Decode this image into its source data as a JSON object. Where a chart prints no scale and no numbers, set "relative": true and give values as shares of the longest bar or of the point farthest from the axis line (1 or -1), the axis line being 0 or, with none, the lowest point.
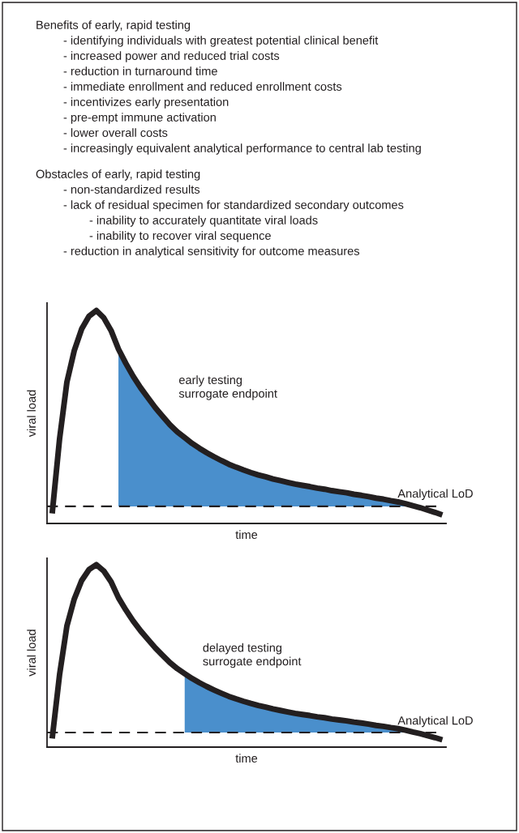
{
  "chart_data": [
    {
      "type": "other",
      "title": "Benefits of early, rapid testing",
      "annotations": [
        "- identifying individuals with greatest potential clinical benefit",
        "- increased power and reduced trial costs",
        "- reduction in turnaround time",
        "- immediate enrollment and reduced enrollment costs",
        "- incentivizes early presentation",
        "- pre-empt immune activation",
        "- lower overall costs",
        "- increasingly equivalent analytical performance to central lab testing"
      ]
    },
    {
      "type": "other",
      "title": "Obstacles of early, rapid testing",
      "annotations": [
        "- non-standardized results",
        "- lack of residual specimen for standardized secondary outcomes",
        "    - inability to accurately quantitate viral loads",
        "    - inability to recover viral sequence",
        "- reduction in analytical sensitivity for outcome measures"
      ]
    },
    {
      "type": "line",
      "relative": true,
      "xlabel": "time",
      "ylabel": "viral load",
      "annotations": [
        "early testing\nsurrogate endpoint"
      ],
      "categories": [
        null,
        null,
        null,
        null,
        null,
        null,
        null,
        null,
        null,
        null,
        null,
        null,
        null,
        null,
        null,
        null,
        null,
        null,
        null,
        null,
        null,
        null,
        null,
        null,
        null,
        null,
        null,
        null,
        null,
        null,
        null,
        null,
        null,
        null,
        null,
        null,
        null,
        null,
        null,
        null,
        null,
        null,
        null,
        null,
        null,
        null,
        null,
        null,
        null,
        null,
        null,
        null,
        null,
        null
      ],
      "ref_lines": [
        {
          "axis": "y",
          "value": 0.08,
          "label": "Analytical LoD",
          "color": "#231f20",
          "line_style": "dashed"
        }
      ],
      "series": [
        {
          "type": "line",
          "color": "#231f20",
          "values": [
            0.047,
            0.396,
            0.664,
            0.812,
            0.913,
            0.973,
            1,
            0.966,
            0.906,
            0.819,
            0.752,
            0.691,
            0.638,
            0.591,
            0.544,
            0.503,
            0.463,
            0.43,
            0.403,
            0.376,
            0.353,
            0.332,
            0.313,
            0.295,
            0.278,
            0.264,
            0.251,
            0.239,
            0.228,
            0.219,
            0.209,
            0.201,
            0.193,
            0.185,
            0.179,
            0.173,
            0.166,
            0.161,
            0.154,
            0.149,
            0.144,
            0.137,
            0.132,
            0.126,
            0.119,
            0.114,
            0.107,
            0.101,
            0.093,
            0.083,
            0.074,
            0.063,
            0.052,
            0.04
          ]
        },
        {
          "type": "area",
          "color": "#4a8fcc",
          "values": [
            null,
            null,
            null,
            null,
            null,
            null,
            null,
            null,
            null,
            0.819,
            0.752,
            0.691,
            0.638,
            0.591,
            0.544,
            0.503,
            0.463,
            0.43,
            0.403,
            0.376,
            0.353,
            0.332,
            0.313,
            0.295,
            0.278,
            0.264,
            0.251,
            0.239,
            0.228,
            0.219,
            0.209,
            0.201,
            0.193,
            0.185,
            0.179,
            0.173,
            0.166,
            0.161,
            0.154,
            0.149,
            0.144,
            0.137,
            0.132,
            0.126,
            0.119,
            0.114,
            0.107,
            0.101,
            0.093,
            0.083,
            null,
            null,
            null,
            null
          ]
        }
      ]
    },
    {
      "type": "line",
      "relative": true,
      "xlabel": "time",
      "ylabel": "viral load",
      "annotations": [
        "delayed testing\nsurrogate endpoint"
      ],
      "categories": [
        null,
        null,
        null,
        null,
        null,
        null,
        null,
        null,
        null,
        null,
        null,
        null,
        null,
        null,
        null,
        null,
        null,
        null,
        null,
        null,
        null,
        null,
        null,
        null,
        null,
        null,
        null,
        null,
        null,
        null,
        null,
        null,
        null,
        null,
        null,
        null,
        null,
        null,
        null,
        null,
        null,
        null,
        null,
        null,
        null,
        null,
        null,
        null,
        null,
        null,
        null,
        null,
        null,
        null
      ],
      "ref_lines": [
        {
          "axis": "y",
          "value": 0.08,
          "label": "Analytical LoD",
          "color": "#231f20",
          "line_style": "dashed"
        }
      ],
      "series": [
        {
          "type": "line",
          "color": "#231f20",
          "values": [
            0.047,
            0.396,
            0.664,
            0.812,
            0.913,
            0.973,
            1,
            0.966,
            0.906,
            0.819,
            0.752,
            0.691,
            0.638,
            0.591,
            0.544,
            0.503,
            0.463,
            0.43,
            0.403,
            0.376,
            0.353,
            0.332,
            0.313,
            0.295,
            0.278,
            0.264,
            0.251,
            0.239,
            0.228,
            0.219,
            0.209,
            0.201,
            0.193,
            0.185,
            0.179,
            0.173,
            0.166,
            0.161,
            0.154,
            0.149,
            0.144,
            0.137,
            0.132,
            0.126,
            0.119,
            0.114,
            0.107,
            0.101,
            0.093,
            0.083,
            0.074,
            0.063,
            0.052,
            0.04
          ]
        },
        {
          "type": "area",
          "color": "#4a8fcc",
          "values": [
            null,
            null,
            null,
            null,
            null,
            null,
            null,
            null,
            null,
            null,
            null,
            null,
            null,
            null,
            null,
            null,
            null,
            null,
            0.403,
            0.376,
            0.353,
            0.332,
            0.313,
            0.295,
            0.278,
            0.264,
            0.251,
            0.239,
            0.228,
            0.219,
            0.209,
            0.201,
            0.193,
            0.185,
            0.179,
            0.173,
            0.166,
            0.161,
            0.154,
            0.149,
            0.144,
            0.137,
            0.132,
            0.126,
            0.119,
            0.114,
            0.107,
            0.101,
            0.093,
            0.083,
            null,
            null,
            null,
            null
          ]
        }
      ]
    }
  ]
}
